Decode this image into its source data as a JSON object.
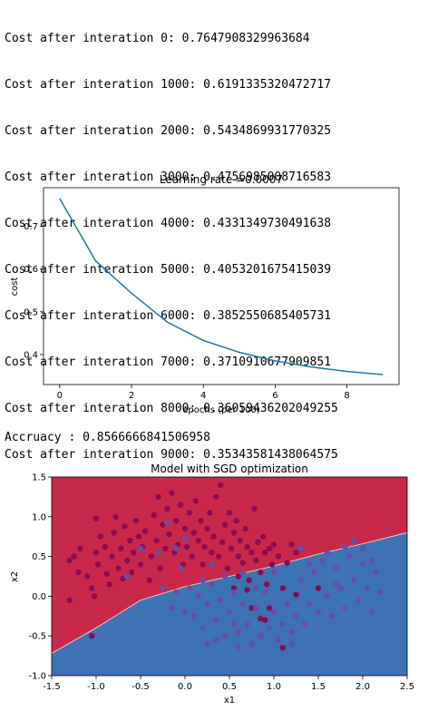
{
  "console": {
    "lines": [
      "Cost after interation 0: 0.7647908329963684",
      "Cost after interation 1000: 0.6191335320472717",
      "Cost after interation 2000: 0.5434869931770325",
      "Cost after interation 3000: 0.4756985008716583",
      "Cost after interation 4000: 0.4331349730491638",
      "Cost after interation 5000: 0.4053201675415039",
      "Cost after interation 6000: 0.3852550685405731",
      "Cost after interation 7000: 0.3710910677909851",
      "Cost after interation 8000: 0.36059436202049255",
      "Cost after interation 9000: 0.35343581438064575"
    ],
    "accuracy": "Accruacy : 0.8566666841506958"
  },
  "colors": {
    "line": "#1f77b4",
    "region_red": "#c8294a",
    "region_blue": "#3d72b3",
    "point_red": "#8b0a50",
    "point_blue": "#6a4ea6"
  },
  "chart_data": [
    {
      "type": "line",
      "title": "Learning rate =0.0007",
      "xlabel": "epochs (per 100)",
      "ylabel": "cost",
      "x": [
        0,
        1,
        2,
        3,
        4,
        5,
        6,
        7,
        8,
        9
      ],
      "values": [
        0.7648,
        0.6191,
        0.5435,
        0.4757,
        0.4331,
        0.4053,
        0.3853,
        0.3711,
        0.3606,
        0.3534
      ],
      "xlim": [
        -0.45,
        9.45
      ],
      "ylim": [
        0.33,
        0.79
      ],
      "xticks": [
        0,
        2,
        4,
        6,
        8
      ],
      "yticks": [
        0.4,
        0.5,
        0.6,
        0.7
      ],
      "grid": false
    },
    {
      "type": "scatter",
      "title": "Model with SGD optimization",
      "xlabel": "x1",
      "ylabel": "x2",
      "xlim": [
        -1.5,
        2.5
      ],
      "ylim": [
        -1.0,
        1.5
      ],
      "xticks": [
        -1.5,
        -1.0,
        -0.5,
        0.0,
        0.5,
        1.0,
        1.5,
        2.0,
        2.5
      ],
      "yticks": [
        -1.0,
        -0.5,
        0.0,
        0.5,
        1.0,
        1.5
      ],
      "decision_boundary": [
        [
          -1.5,
          -0.72
        ],
        [
          -1.0,
          -0.4
        ],
        [
          -0.5,
          -0.05
        ],
        [
          0.0,
          0.12
        ],
        [
          0.5,
          0.25
        ],
        [
          1.0,
          0.38
        ],
        [
          1.5,
          0.53
        ],
        [
          2.0,
          0.66
        ],
        [
          2.5,
          0.8
        ]
      ],
      "series": [
        {
          "label_class": "red",
          "points": [
            [
              -1.3,
              -0.05
            ],
            [
              -1.3,
              0.45
            ],
            [
              -1.25,
              0.5
            ],
            [
              -1.2,
              0.3
            ],
            [
              -1.18,
              0.6
            ],
            [
              -1.1,
              0.25
            ],
            [
              -1.05,
              0.1
            ],
            [
              -1.05,
              -0.5
            ],
            [
              -1.02,
              0.0
            ],
            [
              -1.0,
              0.55
            ],
            [
              -1.0,
              0.98
            ],
            [
              -0.98,
              0.4
            ],
            [
              -0.95,
              0.75
            ],
            [
              -0.9,
              0.62
            ],
            [
              -0.88,
              0.28
            ],
            [
              -0.85,
              0.15
            ],
            [
              -0.82,
              0.5
            ],
            [
              -0.8,
              0.8
            ],
            [
              -0.78,
              1.0
            ],
            [
              -0.75,
              0.35
            ],
            [
              -0.72,
              0.6
            ],
            [
              -0.7,
              0.22
            ],
            [
              -0.68,
              0.88
            ],
            [
              -0.65,
              0.45
            ],
            [
              -0.62,
              0.7
            ],
            [
              -0.6,
              0.3
            ],
            [
              -0.58,
              0.55
            ],
            [
              -0.55,
              0.95
            ],
            [
              -0.52,
              0.75
            ],
            [
              -0.5,
              0.4
            ],
            [
              -0.48,
              0.62
            ],
            [
              -0.45,
              0.82
            ],
            [
              -0.4,
              0.2
            ],
            [
              -0.38,
              0.5
            ],
            [
              -0.35,
              1.02
            ],
            [
              -0.32,
              0.7
            ],
            [
              -0.3,
              1.25
            ],
            [
              -0.28,
              0.35
            ],
            [
              -0.25,
              0.9
            ],
            [
              -0.22,
              0.6
            ],
            [
              -0.2,
              1.1
            ],
            [
              -0.18,
              0.78
            ],
            [
              -0.15,
              1.3
            ],
            [
              -0.12,
              0.55
            ],
            [
              -0.1,
              0.95
            ],
            [
              -0.08,
              0.65
            ],
            [
              -0.05,
              1.15
            ],
            [
              -0.02,
              0.4
            ],
            [
              0.0,
              0.85
            ],
            [
              0.02,
              0.62
            ],
            [
              0.05,
              1.05
            ],
            [
              0.08,
              0.5
            ],
            [
              0.1,
              0.8
            ],
            [
              0.12,
              1.2
            ],
            [
              0.15,
              0.7
            ],
            [
              0.18,
              0.95
            ],
            [
              0.2,
              0.4
            ],
            [
              0.22,
              0.62
            ],
            [
              0.25,
              0.85
            ],
            [
              0.28,
              1.05
            ],
            [
              0.3,
              0.55
            ],
            [
              0.32,
              0.75
            ],
            [
              0.35,
              1.25
            ],
            [
              0.38,
              0.5
            ],
            [
              0.4,
              1.4
            ],
            [
              0.42,
              0.68
            ],
            [
              0.45,
              0.9
            ],
            [
              0.48,
              0.35
            ],
            [
              0.5,
              1.05
            ],
            [
              0.52,
              0.6
            ],
            [
              0.55,
              0.8
            ],
            [
              0.58,
              0.95
            ],
            [
              0.6,
              0.5
            ],
            [
              0.62,
              0.7
            ],
            [
              0.65,
              0.42
            ],
            [
              0.68,
              0.85
            ],
            [
              0.7,
              0.62
            ],
            [
              0.72,
              0.2
            ],
            [
              0.75,
              0.55
            ],
            [
              0.78,
              1.1
            ],
            [
              0.8,
              0.45
            ],
            [
              0.82,
              0.68
            ],
            [
              0.85,
              0.3
            ],
            [
              0.88,
              0.75
            ],
            [
              0.9,
              0.55
            ],
            [
              0.92,
              0.15
            ],
            [
              0.95,
              0.6
            ],
            [
              0.98,
              0.4
            ],
            [
              1.0,
              0.65
            ],
            [
              1.05,
              0.5
            ],
            [
              1.1,
              0.1
            ],
            [
              1.15,
              0.42
            ],
            [
              1.2,
              0.65
            ],
            [
              1.25,
              0.55
            ],
            [
              0.75,
              -0.15
            ],
            [
              0.85,
              -0.28
            ],
            [
              0.9,
              -0.3
            ],
            [
              1.1,
              -0.65
            ],
            [
              1.5,
              0.1
            ],
            [
              1.25,
              0.02
            ],
            [
              0.7,
              0.08
            ],
            [
              0.55,
              0.1
            ],
            [
              0.6,
              0.25
            ],
            [
              0.95,
              -0.15
            ]
          ]
        },
        {
          "label_class": "blue",
          "points": [
            [
              -0.65,
              0.25
            ],
            [
              -0.5,
              0.6
            ],
            [
              -0.3,
              0.55
            ],
            [
              -0.2,
              0.92
            ],
            [
              -0.1,
              0.6
            ],
            [
              0.0,
              0.72
            ],
            [
              -0.25,
              0.1
            ],
            [
              -0.1,
              0.05
            ],
            [
              -0.15,
              -0.15
            ],
            [
              0.05,
              0.1
            ],
            [
              0.1,
              -0.25
            ],
            [
              0.15,
              0.0
            ],
            [
              0.2,
              -0.4
            ],
            [
              0.25,
              -0.1
            ],
            [
              0.3,
              0.15
            ],
            [
              0.35,
              -0.3
            ],
            [
              0.4,
              -0.05
            ],
            [
              0.45,
              -0.5
            ],
            [
              0.5,
              -0.2
            ],
            [
              0.55,
              0.05
            ],
            [
              0.6,
              -0.45
            ],
            [
              0.65,
              -0.1
            ],
            [
              0.7,
              -0.35
            ],
            [
              0.75,
              -0.6
            ],
            [
              0.8,
              -0.15
            ],
            [
              0.85,
              -0.5
            ],
            [
              0.9,
              0.05
            ],
            [
              0.95,
              -0.4
            ],
            [
              1.0,
              -0.2
            ],
            [
              1.05,
              -0.55
            ],
            [
              1.1,
              -0.35
            ],
            [
              1.15,
              -0.1
            ],
            [
              1.2,
              -0.45
            ],
            [
              1.25,
              -0.25
            ],
            [
              1.3,
              0.2
            ],
            [
              1.35,
              -0.35
            ],
            [
              1.4,
              -0.1
            ],
            [
              1.45,
              0.3
            ],
            [
              1.5,
              -0.2
            ],
            [
              1.55,
              0.45
            ],
            [
              1.6,
              0.0
            ],
            [
              1.65,
              -0.25
            ],
            [
              1.7,
              0.35
            ],
            [
              1.75,
              0.1
            ],
            [
              1.8,
              -0.15
            ],
            [
              1.85,
              0.5
            ],
            [
              1.9,
              0.2
            ],
            [
              1.95,
              -0.05
            ],
            [
              2.0,
              0.4
            ],
            [
              2.05,
              0.1
            ],
            [
              2.1,
              -0.2
            ],
            [
              2.15,
              0.3
            ],
            [
              2.2,
              0.05
            ],
            [
              2.0,
              0.6
            ],
            [
              1.8,
              0.62
            ],
            [
              1.6,
              0.55
            ],
            [
              1.4,
              0.4
            ],
            [
              1.3,
              0.6
            ],
            [
              1.2,
              -0.6
            ],
            [
              0.6,
              -0.65
            ],
            [
              0.35,
              -0.55
            ],
            [
              0.0,
              -0.2
            ],
            [
              0.3,
              0.4
            ],
            [
              0.45,
              0.25
            ],
            [
              0.65,
              0.3
            ],
            [
              1.0,
              0.3
            ],
            [
              1.7,
              0.15
            ],
            [
              1.9,
              0.7
            ],
            [
              2.1,
              0.45
            ],
            [
              0.8,
              0.1
            ],
            [
              0.2,
              0.2
            ],
            [
              -0.05,
              0.35
            ],
            [
              0.25,
              -0.6
            ],
            [
              0.55,
              -0.35
            ]
          ]
        }
      ]
    }
  ]
}
